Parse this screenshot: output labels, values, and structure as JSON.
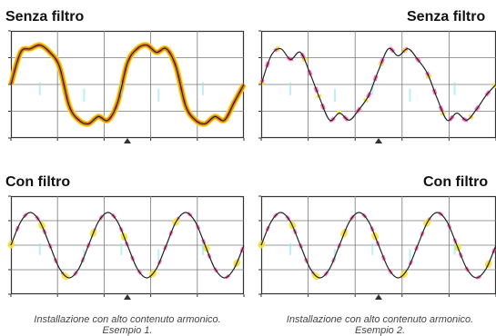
{
  "chart_data": [
    {
      "type": "line",
      "title": "Senza filtro",
      "series": [],
      "x": [
        0,
        0.125,
        0.25,
        0.375,
        0.5,
        0.625,
        0.75,
        0.875,
        1,
        1.125,
        1.25,
        1.375,
        1.5,
        1.625,
        1.75,
        1.875,
        2,
        2.125,
        2.25,
        2.375,
        2.5,
        2.625,
        2.75,
        2.875,
        3
      ],
      "values": [
        0,
        0.9,
        1,
        1.1,
        0.9,
        0.5,
        -0.6,
        -1,
        -1.1,
        -0.9,
        -1,
        -0.5,
        0.6,
        1,
        1.1,
        0.9,
        1,
        0.5,
        -0.6,
        -1,
        -1.1,
        -0.9,
        -1,
        -0.5,
        0
      ],
      "ylim": [
        -1.5,
        1.5
      ],
      "grid": true
    },
    {
      "type": "line",
      "title": "Senza filtro",
      "series": [],
      "x": [
        0,
        0.125,
        0.25,
        0.375,
        0.5,
        0.625,
        0.75,
        0.875,
        1,
        1.125,
        1.25,
        1.375,
        1.5,
        1.625,
        1.75,
        1.875,
        2,
        2.125,
        2.25,
        2.375,
        2.5,
        2.625,
        2.75,
        2.875,
        3
      ],
      "values": [
        0,
        0.8,
        1,
        0.7,
        0.9,
        0.3,
        -0.4,
        -1,
        -0.8,
        -1,
        -0.7,
        -0.3,
        0.4,
        1,
        0.8,
        1,
        0.7,
        0.3,
        -0.4,
        -1,
        -0.8,
        -1,
        -0.7,
        -0.3,
        0
      ],
      "ylim": [
        -1.5,
        1.5
      ],
      "grid": true
    },
    {
      "type": "line",
      "title": "Con filtro",
      "series": [],
      "x": [
        0,
        0.125,
        0.25,
        0.375,
        0.5,
        0.625,
        0.75,
        0.875,
        1,
        1.125,
        1.25,
        1.375,
        1.5,
        1.625,
        1.75,
        1.875,
        2,
        2.125,
        2.25,
        2.375,
        2.5,
        2.625,
        2.75,
        2.875,
        3
      ],
      "values": [
        0,
        0.71,
        1,
        0.71,
        0,
        -0.71,
        -1,
        -0.71,
        0,
        0.71,
        1,
        0.71,
        0,
        -0.71,
        -1,
        -0.71,
        0,
        0.71,
        1,
        0.71,
        0,
        -0.71,
        -1,
        -0.71,
        0
      ],
      "ylim": [
        -1.5,
        1.5
      ],
      "grid": true
    },
    {
      "type": "line",
      "title": "Con filtro",
      "series": [],
      "x": [
        0,
        0.125,
        0.25,
        0.375,
        0.5,
        0.625,
        0.75,
        0.875,
        1,
        1.125,
        1.25,
        1.375,
        1.5,
        1.625,
        1.75,
        1.875,
        2,
        2.125,
        2.25,
        2.375,
        2.5,
        2.625,
        2.75,
        2.875,
        3
      ],
      "values": [
        0,
        0.71,
        1,
        0.71,
        0,
        -0.71,
        -1,
        -0.71,
        0,
        0.71,
        1,
        0.71,
        0,
        -0.71,
        -1,
        -0.71,
        0,
        0.71,
        1,
        0.71,
        0,
        -0.71,
        -1,
        -0.71,
        0
      ],
      "ylim": [
        -1.5,
        1.5
      ],
      "grid": true
    }
  ],
  "captions": [
    {
      "line1": "Installazione con alto contenuto armonico.",
      "line2": "Esempio 1."
    },
    {
      "line1": "Installazione con alto contenuto armonico.",
      "line2": "Esempio 2."
    }
  ],
  "colors": {
    "trace": "#222222",
    "highlight_orange": "#e88a00",
    "highlight_yellow": "#f5e23a",
    "highlight_magenta": "#ff4aa0",
    "highlight_cyan": "#8ee6f2",
    "grid": "#7a7a7a",
    "frame": "#333333"
  }
}
